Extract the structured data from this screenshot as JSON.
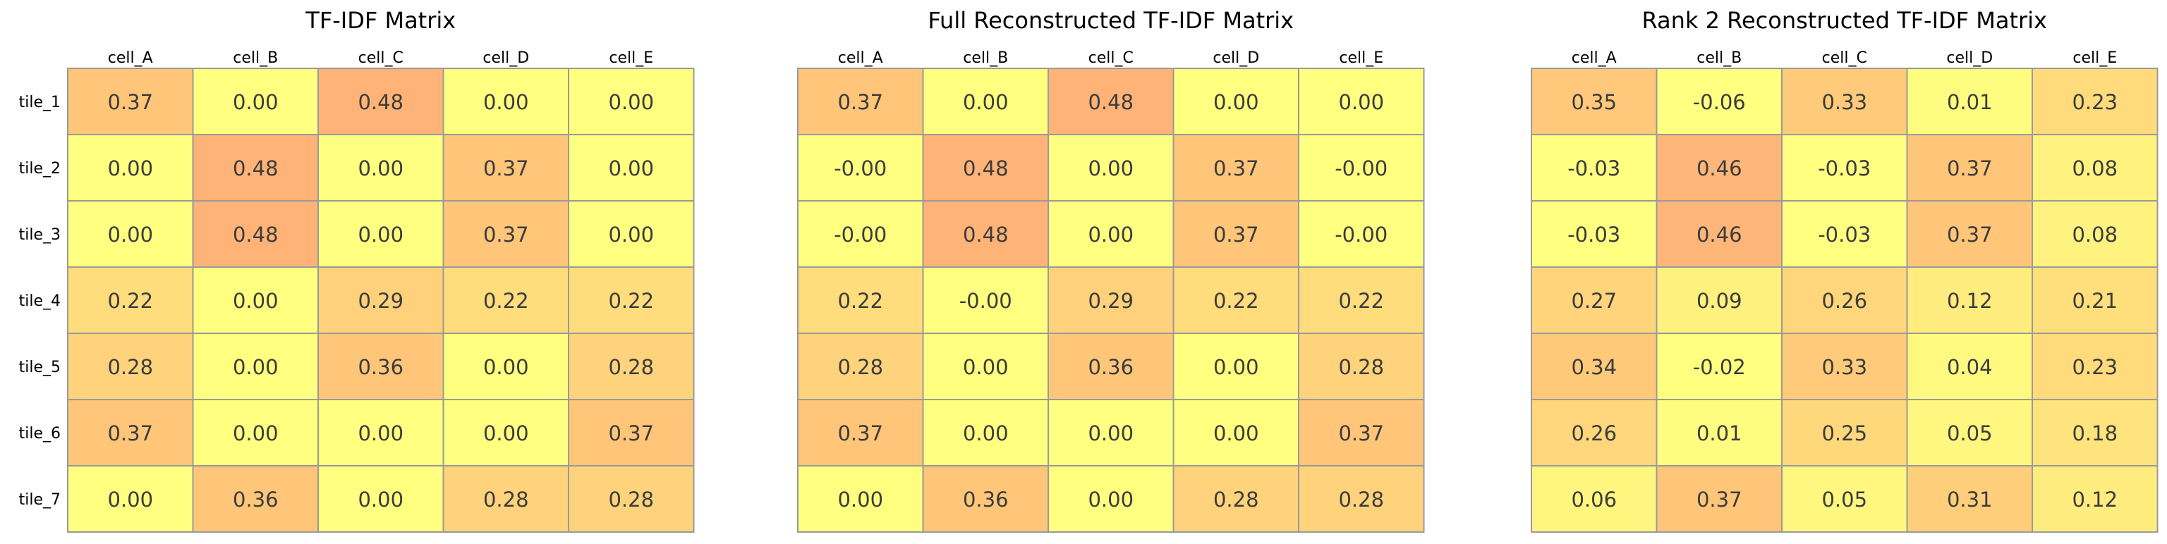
{
  "row_labels": [
    "tile_1",
    "tile_2",
    "tile_3",
    "tile_4",
    "tile_5",
    "tile_6",
    "tile_7"
  ],
  "col_labels": [
    "cell_A",
    "cell_B",
    "cell_C",
    "cell_D",
    "cell_E"
  ],
  "colors": {
    "low": "#FFFF80",
    "high": "#FFB077",
    "grid": "#9A9A9A",
    "text": "#3C3C3C"
  },
  "chart_data": [
    {
      "type": "heatmap",
      "title": "TF-IDF Matrix",
      "rows": [
        "tile_1",
        "tile_2",
        "tile_3",
        "tile_4",
        "tile_5",
        "tile_6",
        "tile_7"
      ],
      "columns": [
        "cell_A",
        "cell_B",
        "cell_C",
        "cell_D",
        "cell_E"
      ],
      "values": [
        [
          "0.37",
          "0.00",
          "0.48",
          "0.00",
          "0.00"
        ],
        [
          "0.00",
          "0.48",
          "0.00",
          "0.37",
          "0.00"
        ],
        [
          "0.00",
          "0.48",
          "0.00",
          "0.37",
          "0.00"
        ],
        [
          "0.22",
          "0.00",
          "0.29",
          "0.22",
          "0.22"
        ],
        [
          "0.28",
          "0.00",
          "0.36",
          "0.00",
          "0.28"
        ],
        [
          "0.37",
          "0.00",
          "0.00",
          "0.00",
          "0.37"
        ],
        [
          "0.00",
          "0.36",
          "0.00",
          "0.28",
          "0.28"
        ]
      ],
      "color_range": [
        0,
        0.5
      ]
    },
    {
      "type": "heatmap",
      "title": "Full Reconstructed TF-IDF Matrix",
      "rows": [
        "tile_1",
        "tile_2",
        "tile_3",
        "tile_4",
        "tile_5",
        "tile_6",
        "tile_7"
      ],
      "columns": [
        "cell_A",
        "cell_B",
        "cell_C",
        "cell_D",
        "cell_E"
      ],
      "values": [
        [
          "0.37",
          "0.00",
          "0.48",
          "0.00",
          "0.00"
        ],
        [
          "-0.00",
          "0.48",
          "0.00",
          "0.37",
          "-0.00"
        ],
        [
          "-0.00",
          "0.48",
          "0.00",
          "0.37",
          "-0.00"
        ],
        [
          "0.22",
          "-0.00",
          "0.29",
          "0.22",
          "0.22"
        ],
        [
          "0.28",
          "0.00",
          "0.36",
          "0.00",
          "0.28"
        ],
        [
          "0.37",
          "0.00",
          "0.00",
          "0.00",
          "0.37"
        ],
        [
          "0.00",
          "0.36",
          "0.00",
          "0.28",
          "0.28"
        ]
      ],
      "color_range": [
        0,
        0.5
      ]
    },
    {
      "type": "heatmap",
      "title": "Rank 2 Reconstructed TF-IDF Matrix",
      "rows": [
        "tile_1",
        "tile_2",
        "tile_3",
        "tile_4",
        "tile_5",
        "tile_6",
        "tile_7"
      ],
      "columns": [
        "cell_A",
        "cell_B",
        "cell_C",
        "cell_D",
        "cell_E"
      ],
      "values": [
        [
          "0.35",
          "-0.06",
          "0.33",
          "0.01",
          "0.23"
        ],
        [
          "-0.03",
          "0.46",
          "-0.03",
          "0.37",
          "0.08"
        ],
        [
          "-0.03",
          "0.46",
          "-0.03",
          "0.37",
          "0.08"
        ],
        [
          "0.27",
          "0.09",
          "0.26",
          "0.12",
          "0.21"
        ],
        [
          "0.34",
          "-0.02",
          "0.33",
          "0.04",
          "0.23"
        ],
        [
          "0.26",
          "0.01",
          "0.25",
          "0.05",
          "0.18"
        ],
        [
          "0.06",
          "0.37",
          "0.05",
          "0.31",
          "0.12"
        ]
      ],
      "color_range": [
        0,
        0.5
      ]
    }
  ]
}
